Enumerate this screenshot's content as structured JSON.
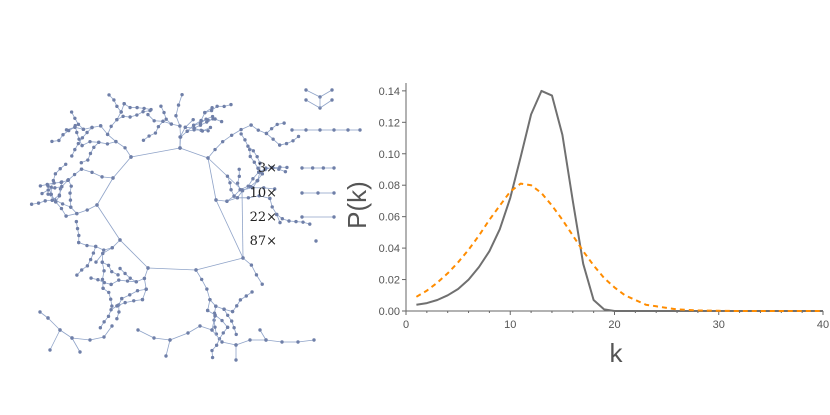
{
  "network_legend": [
    {
      "count_label": "3×",
      "chain_length": 4
    },
    {
      "count_label": "10×",
      "chain_length": 3
    },
    {
      "count_label": "22×",
      "chain_length": 2
    },
    {
      "count_label": "87×",
      "chain_length": 1
    }
  ],
  "colors": {
    "network_edge": "#8fa3c8",
    "network_node": "#6f7fa8",
    "empirical_series": "#707070",
    "poisson_series": "#ff8c00",
    "axis": "#666666"
  },
  "chart_data": {
    "type": "line",
    "xlabel": "k",
    "ylabel": "P(k)",
    "xlim": [
      0,
      40
    ],
    "ylim": [
      0,
      0.145
    ],
    "xticks": [
      0,
      10,
      20,
      30,
      40
    ],
    "yticks": [
      0.0,
      0.02,
      0.04,
      0.06,
      0.08,
      0.1,
      0.12,
      0.14
    ],
    "ytick_labels": [
      "0.00",
      "0.02",
      "0.04",
      "0.06",
      "0.08",
      "0.10",
      "0.12",
      "0.14"
    ],
    "grid": false,
    "series": [
      {
        "style": "solid",
        "x": [
          1,
          2,
          3,
          4,
          5,
          6,
          7,
          8,
          9,
          10,
          11,
          12,
          13,
          14,
          15,
          16,
          17,
          18,
          19,
          20,
          22,
          24,
          26,
          28,
          30,
          32,
          34,
          36,
          38,
          40
        ],
        "y": [
          0.004,
          0.005,
          0.007,
          0.01,
          0.014,
          0.02,
          0.028,
          0.038,
          0.052,
          0.072,
          0.098,
          0.125,
          0.14,
          0.137,
          0.112,
          0.07,
          0.03,
          0.007,
          0.001,
          0,
          0,
          0,
          0,
          0,
          0,
          0,
          0,
          0,
          0,
          0
        ]
      },
      {
        "style": "dashed",
        "x": [
          1,
          2,
          3,
          4,
          5,
          6,
          7,
          8,
          9,
          10,
          11,
          12,
          13,
          14,
          15,
          16,
          17,
          18,
          19,
          20,
          21,
          22,
          23,
          24,
          25,
          26,
          28,
          30,
          32,
          35,
          40
        ],
        "y": [
          0.009,
          0.013,
          0.018,
          0.024,
          0.031,
          0.039,
          0.048,
          0.058,
          0.067,
          0.076,
          0.081,
          0.08,
          0.075,
          0.067,
          0.058,
          0.048,
          0.038,
          0.029,
          0.021,
          0.015,
          0.01,
          0.007,
          0.004,
          0.003,
          0.002,
          0.001,
          0.0004,
          0.0001,
          0,
          0,
          0
        ]
      }
    ]
  }
}
